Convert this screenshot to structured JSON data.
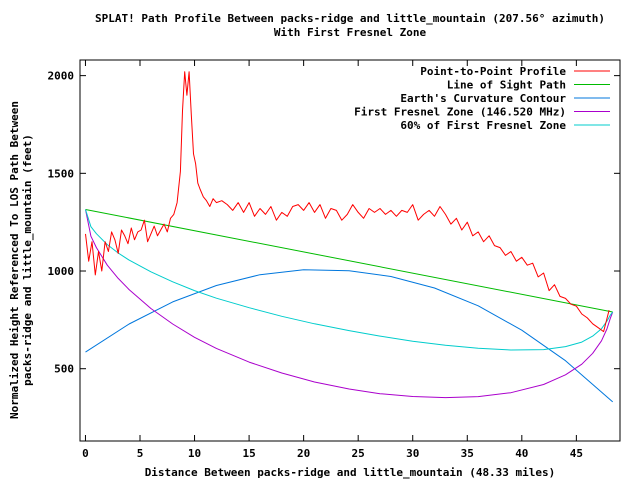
{
  "colors": {
    "profile": "#ff0000",
    "los": "#00bb00",
    "curvature": "#0077dd",
    "fresnel": "#aa00cc",
    "fresnel60": "#00cccc",
    "axes": "#000000",
    "background": "#ffffff"
  },
  "chart_data": {
    "type": "line",
    "title": "SPLAT! Path Profile Between packs-ridge and little_mountain (207.56° azimuth)",
    "subtitle": "With First Fresnel Zone",
    "xlabel": "Distance Between packs-ridge and little_mountain (48.33 miles)",
    "ylabel_line1": "Normalized Height Referenced To LOS Path Between",
    "ylabel_line2": "packs-ridge and little_mountain (feet)",
    "xlim": [
      -0.5,
      49
    ],
    "ylim": [
      130,
      2080
    ],
    "x_ticks": [
      0,
      5,
      10,
      15,
      20,
      25,
      30,
      35,
      40,
      45
    ],
    "y_ticks": [
      500,
      1000,
      1500,
      2000
    ],
    "grid": false,
    "legend_position": "top-right",
    "series": [
      {
        "name": "Point-to-Point Profile",
        "color": "#ff0000",
        "x": [
          0,
          0.3,
          0.6,
          0.9,
          1.2,
          1.5,
          1.8,
          2.1,
          2.4,
          2.7,
          3.0,
          3.3,
          3.6,
          3.9,
          4.2,
          4.5,
          4.8,
          5.1,
          5.4,
          5.7,
          6.0,
          6.3,
          6.6,
          6.9,
          7.2,
          7.5,
          7.8,
          8.1,
          8.4,
          8.7,
          8.9,
          9.1,
          9.3,
          9.5,
          9.7,
          9.9,
          10.1,
          10.3,
          10.5,
          10.8,
          11.1,
          11.4,
          11.7,
          12.0,
          12.5,
          13.0,
          13.5,
          14.0,
          14.5,
          15.0,
          15.5,
          16.0,
          16.5,
          17.0,
          17.5,
          18.0,
          18.5,
          19.0,
          19.5,
          20.0,
          20.5,
          21.0,
          21.5,
          22.0,
          22.5,
          23.0,
          23.5,
          24.0,
          24.5,
          25.0,
          25.5,
          26.0,
          26.5,
          27.0,
          27.5,
          28.0,
          28.5,
          29.0,
          29.5,
          30.0,
          30.5,
          31.0,
          31.5,
          32.0,
          32.5,
          33.0,
          33.5,
          34.0,
          34.5,
          35.0,
          35.5,
          36.0,
          36.5,
          37.0,
          37.5,
          38.0,
          38.5,
          39.0,
          39.5,
          40.0,
          40.5,
          41.0,
          41.5,
          42.0,
          42.5,
          43.0,
          43.5,
          44.0,
          44.5,
          45.0,
          45.5,
          46.0,
          46.5,
          47.0,
          47.5,
          48.0
        ],
        "y": [
          1190,
          1050,
          1150,
          980,
          1100,
          1000,
          1150,
          1100,
          1200,
          1160,
          1090,
          1210,
          1180,
          1140,
          1220,
          1160,
          1200,
          1210,
          1260,
          1150,
          1190,
          1230,
          1180,
          1210,
          1240,
          1200,
          1270,
          1290,
          1350,
          1510,
          1820,
          2020,
          1900,
          2020,
          1800,
          1600,
          1550,
          1450,
          1420,
          1380,
          1360,
          1330,
          1370,
          1350,
          1360,
          1340,
          1310,
          1350,
          1300,
          1350,
          1280,
          1320,
          1290,
          1330,
          1260,
          1300,
          1280,
          1330,
          1340,
          1310,
          1350,
          1300,
          1340,
          1270,
          1320,
          1310,
          1260,
          1290,
          1340,
          1300,
          1270,
          1320,
          1300,
          1320,
          1290,
          1310,
          1280,
          1310,
          1300,
          1340,
          1260,
          1290,
          1310,
          1280,
          1330,
          1290,
          1240,
          1270,
          1210,
          1250,
          1180,
          1200,
          1150,
          1180,
          1130,
          1120,
          1080,
          1100,
          1050,
          1070,
          1030,
          1040,
          970,
          990,
          900,
          930,
          870,
          860,
          830,
          820,
          780,
          760,
          730,
          710,
          690,
          800
        ]
      },
      {
        "name": "Line of Sight Path",
        "color": "#00bb00",
        "x": [
          0,
          48.33
        ],
        "y": [
          1315,
          790
        ]
      },
      {
        "name": "Earth's Curvature Contour",
        "color": "#0077dd",
        "x": [
          0,
          4,
          8,
          12,
          16,
          20,
          24.17,
          28,
          32,
          36,
          40,
          44,
          48.33
        ],
        "y": [
          585,
          729,
          842,
          926,
          981,
          1006,
          1001,
          972,
          913,
          822,
          697,
          541,
          330
        ]
      },
      {
        "name": "First Fresnel Zone (146.520 MHz)",
        "color": "#aa00cc",
        "x": [
          0,
          0.5,
          1,
          2,
          3,
          4,
          6,
          8,
          10,
          12,
          15,
          18,
          21,
          24.17,
          27,
          30,
          33,
          36,
          39,
          42,
          44,
          45.5,
          46.5,
          47.3,
          47.8,
          48.1,
          48.33
        ],
        "y": [
          1315,
          1178,
          1120,
          1030,
          962,
          905,
          808,
          729,
          661,
          604,
          534,
          478,
          432,
          396,
          372,
          358,
          352,
          357,
          377,
          419,
          469,
          523,
          579,
          643,
          703,
          756,
          790
        ]
      },
      {
        "name": "60% of First Fresnel Zone",
        "color": "#00cccc",
        "x": [
          0,
          0.5,
          1,
          2,
          3,
          4,
          6,
          8,
          10,
          12,
          15,
          18,
          21,
          24.17,
          27,
          30,
          33,
          36,
          39,
          42,
          44,
          45.5,
          46.5,
          47.3,
          47.8,
          48.1,
          48.33
        ],
        "y": [
          1315,
          1227,
          1191,
          1135,
          1092,
          1056,
          996,
          945,
          900,
          861,
          812,
          768,
          730,
          695,
          667,
          641,
          620,
          605,
          596,
          598,
          613,
          636,
          667,
          705,
          743,
          774,
          790
        ]
      }
    ]
  }
}
